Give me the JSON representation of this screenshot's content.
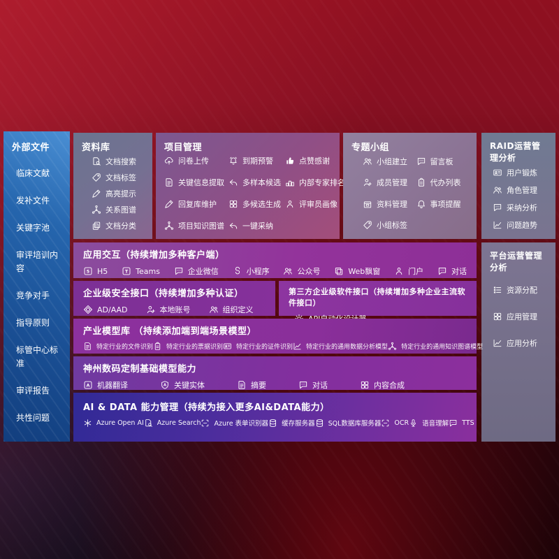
{
  "colors": {
    "background_red": "#7c0d1b",
    "sidebar_blue": "#1f5da8",
    "panel_slate": "#6e7890",
    "band_purple": "#8c339c",
    "aidata_indigo": "#312a96",
    "text": "#ffffff"
  },
  "sidebar": {
    "title": "外部文件",
    "items": [
      "临床文献",
      "发补文件",
      "关键字池",
      "审评培训内容",
      "竞争对手",
      "指导原则",
      "标管中心标准",
      "审评报告",
      "共性问题"
    ]
  },
  "panels": {
    "library": {
      "title": "资料库",
      "items": [
        {
          "label": "文档搜索",
          "icon": "document-search-icon",
          "glyph": "docsearch"
        },
        {
          "label": "文档标签",
          "icon": "tag-icon",
          "glyph": "tag"
        },
        {
          "label": "高亮提示",
          "icon": "highlight-pen-icon",
          "glyph": "pen"
        },
        {
          "label": "关系图谱",
          "icon": "relation-graph-icon",
          "glyph": "graph"
        },
        {
          "label": "文档分类",
          "icon": "document-classify-icon",
          "glyph": "docs"
        }
      ]
    },
    "project": {
      "title": "项目管理",
      "items": [
        {
          "label": "问卷上传",
          "icon": "cloud-upload-icon",
          "glyph": "cloudup"
        },
        {
          "label": "到期预警",
          "icon": "alarm-warning-icon",
          "glyph": "alarm"
        },
        {
          "label": "点赞感谢",
          "icon": "thumbs-up-icon",
          "glyph": "thumb"
        },
        {
          "label": "关键信息提取",
          "icon": "document-extract-icon",
          "glyph": "doc"
        },
        {
          "label": "多样本候选",
          "icon": "multi-sample-arrow-icon",
          "glyph": "reply"
        },
        {
          "label": "内部专家排名",
          "icon": "ranking-podium-icon",
          "glyph": "podium"
        },
        {
          "label": "回复库维护",
          "icon": "pen-edit-icon",
          "glyph": "pen"
        },
        {
          "label": "多候选生成",
          "icon": "multi-generate-grid-icon",
          "glyph": "grid"
        },
        {
          "label": "评审员画像",
          "icon": "reviewer-person-icon",
          "glyph": "person"
        },
        {
          "label": "项目知识图谱",
          "icon": "knowledge-graph-icon",
          "glyph": "graph"
        },
        {
          "label": "一键采纳",
          "icon": "one-click-adopt-arrow-icon",
          "glyph": "reply"
        }
      ]
    },
    "groups": {
      "title": "专题小组",
      "items": [
        {
          "label": "小组建立",
          "icon": "group-people-icon",
          "glyph": "people"
        },
        {
          "label": "留言板",
          "icon": "bbs-message-board-icon",
          "glyph": "chat"
        },
        {
          "label": "成员管理",
          "icon": "member-person-add-icon",
          "glyph": "personplus"
        },
        {
          "label": "代办列表",
          "icon": "todo-clipboard-icon",
          "glyph": "clipboard"
        },
        {
          "label": "资料管理",
          "icon": "material-box-icon",
          "glyph": "box"
        },
        {
          "label": "事项提醒",
          "icon": "reminder-bell-icon",
          "glyph": "bell"
        },
        {
          "label": "小组标签",
          "icon": "group-tag-icon",
          "glyph": "tag"
        }
      ]
    },
    "raid": {
      "title": "RAID运营管理分析",
      "items": [
        {
          "label": "用户锻炼",
          "icon": "user-card-icon",
          "glyph": "idcard"
        },
        {
          "label": "角色管理",
          "icon": "role-people-icon",
          "glyph": "people"
        },
        {
          "label": "采纳分析",
          "icon": "adoption-chat-analysis-icon",
          "glyph": "chat"
        },
        {
          "label": "问题趋势",
          "icon": "trend-chart-icon",
          "glyph": "chart"
        }
      ]
    },
    "platform": {
      "title": "平台运营管理分析",
      "items": [
        {
          "label": "资源分配",
          "icon": "resource-list-icon",
          "glyph": "list"
        },
        {
          "label": "应用管理",
          "icon": "app-grid-icon",
          "glyph": "grid"
        },
        {
          "label": "应用分析",
          "icon": "app-analysis-chart-icon",
          "glyph": "chart"
        }
      ]
    }
  },
  "bands": {
    "interaction": {
      "title": "应用交互（持续增加多种客户端）",
      "items": [
        {
          "label": "H5",
          "icon": "html5-icon",
          "glyph": "h5"
        },
        {
          "label": "Teams",
          "icon": "teams-icon",
          "glyph": "tilet"
        },
        {
          "label": "企业微信",
          "icon": "wechat-work-icon",
          "glyph": "chat"
        },
        {
          "label": "小程序",
          "icon": "miniprogram-icon",
          "glyph": "scurve"
        },
        {
          "label": "公众号",
          "icon": "official-account-icon",
          "glyph": "people"
        },
        {
          "label": "Web飘窗",
          "icon": "web-window-icon",
          "glyph": "window"
        },
        {
          "label": "门户",
          "icon": "portal-person-icon",
          "glyph": "person"
        },
        {
          "label": "对话",
          "icon": "dialog-chat-icon",
          "glyph": "chat"
        }
      ]
    },
    "security": {
      "title": "企业级安全接口（持续增加多种认证）",
      "items": [
        {
          "label": "AD/AAD",
          "icon": "azure-ad-diamond-icon",
          "glyph": "diamond"
        },
        {
          "label": "本地账号",
          "icon": "local-account-icon",
          "glyph": "personplus"
        },
        {
          "label": "组织定义",
          "icon": "org-definition-icon",
          "glyph": "people"
        }
      ]
    },
    "thirdparty": {
      "title": "第三方企业级软件接口（持续增加多种企业主流软件接口）",
      "items": [
        {
          "label": "API自动化设计器",
          "icon": "api-gear-icon",
          "glyph": "gear"
        }
      ]
    },
    "industry": {
      "title": "产业模型库 （持续添加端到端场景模型）",
      "items": [
        {
          "label": "特定行业的文件识别",
          "icon": "file-recognition-icon",
          "glyph": "doc"
        },
        {
          "label": "特定行业的票据识别",
          "icon": "receipt-recognition-icon",
          "glyph": "clipboard"
        },
        {
          "label": "特定行业的证件识别",
          "icon": "id-card-recognition-icon",
          "glyph": "idcard"
        },
        {
          "label": "特定行业的通用数据分析模型",
          "icon": "data-analysis-model-icon",
          "glyph": "chart"
        },
        {
          "label": "特定行业的通用知识图谱模型",
          "icon": "knowledge-graph-model-icon",
          "glyph": "graph"
        }
      ]
    },
    "base": {
      "title": "神州数码定制基础模型能力",
      "items": [
        {
          "label": "机器翻译",
          "icon": "machine-translate-icon",
          "glyph": "translate"
        },
        {
          "label": "关键实体",
          "icon": "key-entity-shield-icon",
          "glyph": "shield"
        },
        {
          "label": "摘要",
          "icon": "summary-doc-icon",
          "glyph": "doc"
        },
        {
          "label": "对话",
          "icon": "dialog-icon",
          "glyph": "chat"
        },
        {
          "label": "内容合成",
          "icon": "content-compose-puzzle-icon",
          "glyph": "grid"
        }
      ]
    },
    "aidata": {
      "title": "AI & DATA 能力管理（持续为接入更多AI&DATA能力）",
      "items": [
        {
          "label": "Azure Open AI",
          "icon": "azure-openai-icon",
          "glyph": "openai"
        },
        {
          "label": "Azure Search",
          "icon": "azure-search-icon",
          "glyph": "docsearch"
        },
        {
          "label": "Azure 表单识别器",
          "icon": "form-recognizer-icon",
          "glyph": "brackets"
        },
        {
          "label": "缓存服务器",
          "icon": "cache-server-icon",
          "glyph": "db"
        },
        {
          "label": "SQL数据库服务器",
          "icon": "sql-database-icon",
          "glyph": "db"
        },
        {
          "label": "OCR",
          "icon": "ocr-icon",
          "glyph": "brackets"
        },
        {
          "label": "语音理解",
          "icon": "speech-understanding-icon",
          "glyph": "mic"
        },
        {
          "label": "TTS",
          "icon": "tts-icon",
          "glyph": "chat"
        }
      ]
    }
  }
}
